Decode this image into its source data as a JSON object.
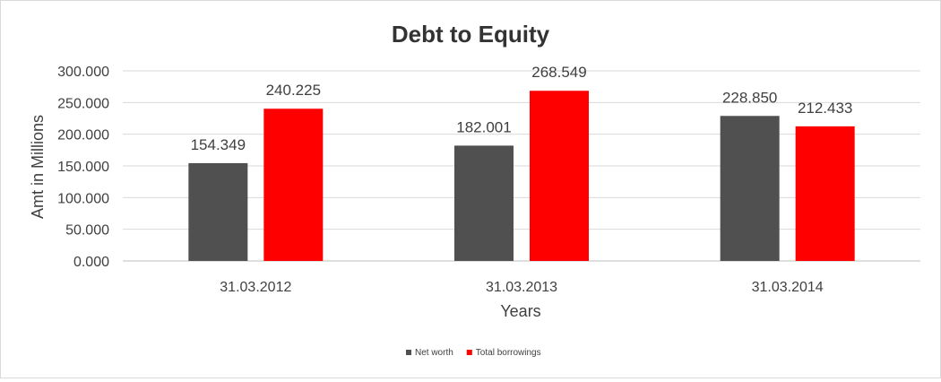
{
  "chart_data": {
    "type": "bar",
    "title": "Debt to Equity",
    "xlabel": "Years",
    "ylabel": "Amt in Millions",
    "categories": [
      "31.03.2012",
      "31.03.2013",
      "31.03.2014"
    ],
    "series": [
      {
        "name": "Net worth",
        "values": [
          154.349,
          182.001,
          228.85
        ],
        "labels": [
          "154.349",
          "182.001",
          "228.850"
        ],
        "color": "#505050"
      },
      {
        "name": "Total borrowings",
        "values": [
          240.225,
          268.549,
          212.433
        ],
        "labels": [
          "240.225",
          "268.549",
          "212.433"
        ],
        "color": "#ff0000"
      }
    ],
    "ylim": [
      0,
      300
    ],
    "yticks": [
      0,
      50,
      100,
      150,
      200,
      250,
      300
    ],
    "ytick_labels": [
      "0.000",
      "50.000",
      "100.000",
      "150.000",
      "200.000",
      "250.000",
      "300.000"
    ],
    "grid": true,
    "legend_position": "bottom"
  }
}
